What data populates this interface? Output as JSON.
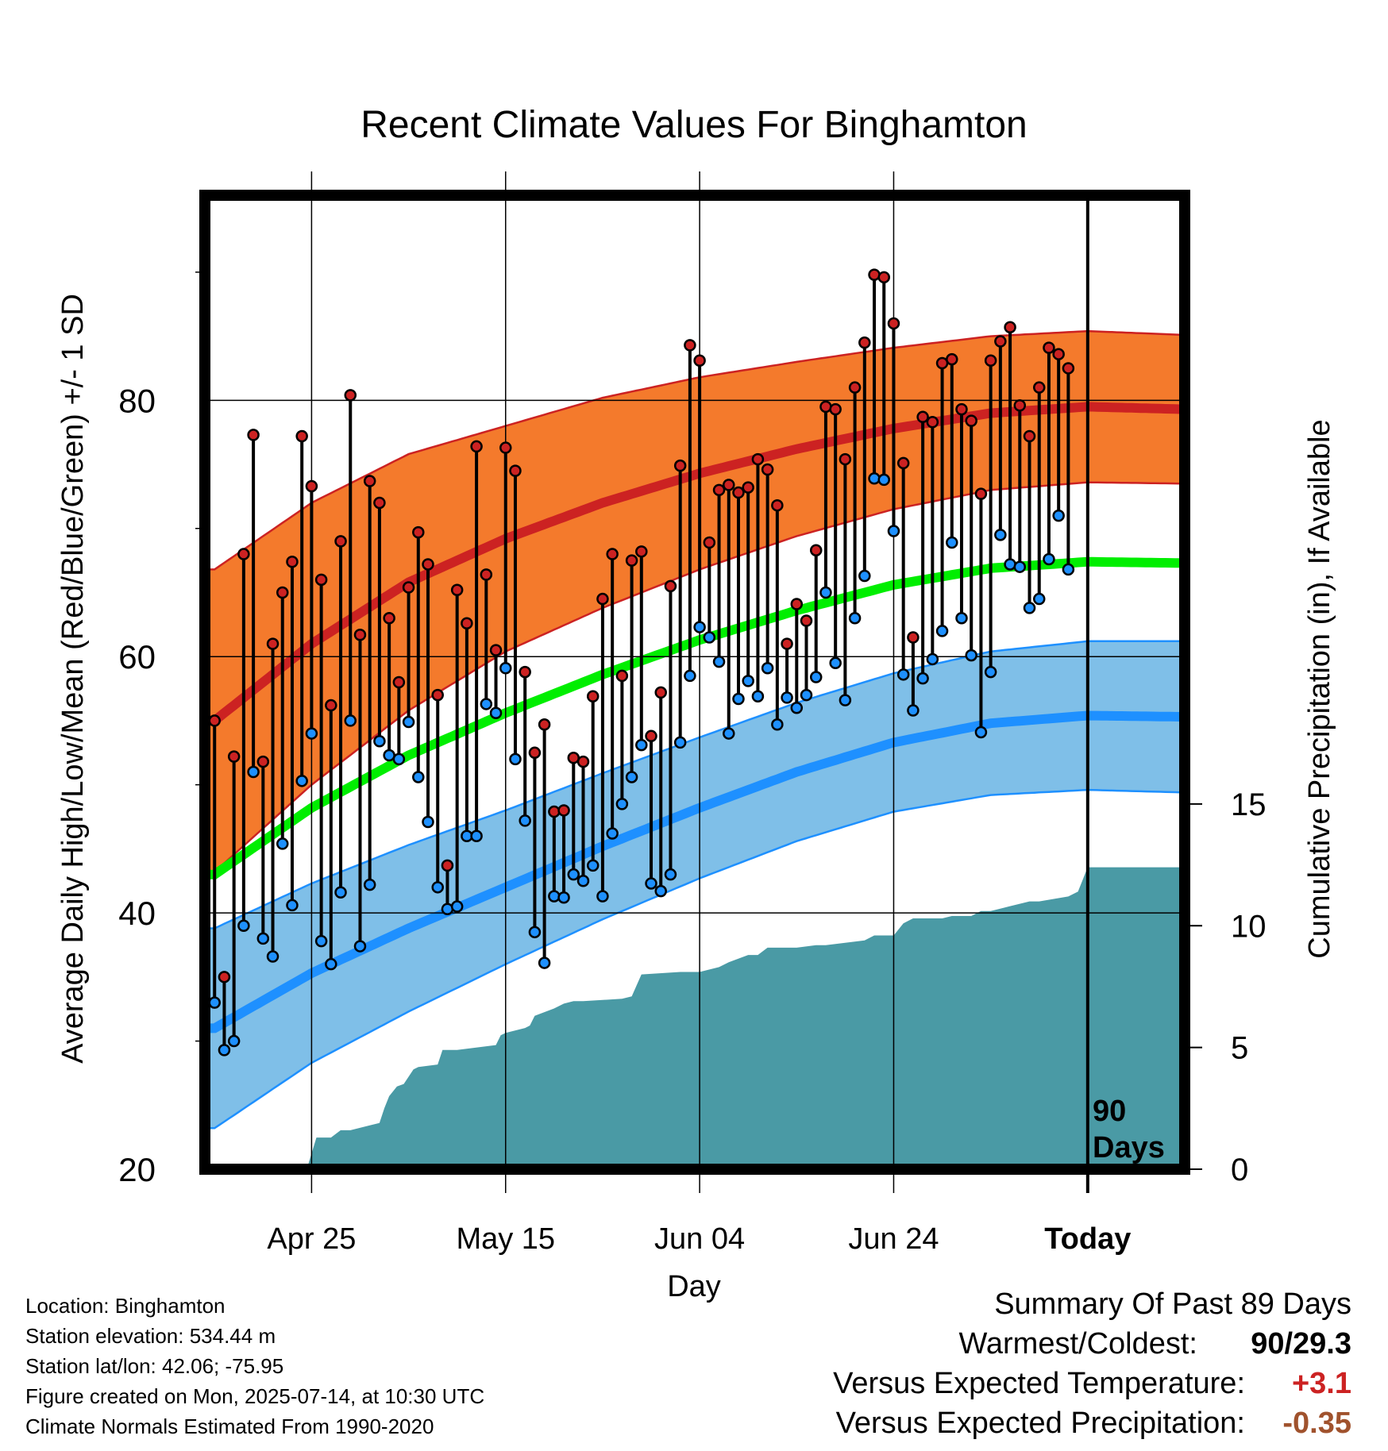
{
  "chart_data": {
    "type": "line",
    "title": "Recent Climate Values For Binghamton",
    "xlabel": "Day",
    "ylabel": "Average Daily High/Low/Mean (Red/Blue/Green) +/- 1 SD",
    "y2label": "Cumulative Precipitation (in), If Available",
    "ylim": [
      20,
      96
    ],
    "y2lim": [
      0,
      40
    ],
    "y_ticks": [
      20,
      40,
      60,
      80
    ],
    "y2_ticks": [
      0,
      5,
      10,
      15
    ],
    "x_tick_labels": [
      "Apr 25",
      "May 15",
      "Jun 04",
      "Jun 24",
      "Today"
    ],
    "x_tick_days": [
      10,
      30,
      50,
      70,
      90
    ],
    "xlim": [
      -1,
      100
    ],
    "today_marker": {
      "day": 90,
      "label_line1": "90",
      "label_line2": "Days"
    },
    "grid": true,
    "colors": {
      "high": "#cc2222",
      "high_band": "#f47a2c",
      "low": "#1e90ff",
      "low_band": "#7fbfe8",
      "mean": "#00ee00",
      "precip": "#4a9aa5"
    },
    "normals": {
      "day": [
        0,
        10,
        20,
        30,
        40,
        50,
        60,
        70,
        80,
        90,
        100
      ],
      "high": [
        55.0,
        61.0,
        65.8,
        69.2,
        72.0,
        74.3,
        76.2,
        77.8,
        79.0,
        79.5,
        79.3
      ],
      "high_sd": [
        11.8,
        11.0,
        10.0,
        8.8,
        8.2,
        7.5,
        6.8,
        6.3,
        6.0,
        5.9,
        5.8
      ],
      "low": [
        31.0,
        35.3,
        38.8,
        42.0,
        45.2,
        48.2,
        51.0,
        53.3,
        54.8,
        55.4,
        55.3
      ],
      "low_sd": [
        7.8,
        7.0,
        6.5,
        6.0,
        5.7,
        5.5,
        5.4,
        5.4,
        5.6,
        5.8,
        5.9
      ],
      "mean": [
        43.0,
        48.2,
        52.3,
        55.6,
        58.6,
        61.3,
        63.6,
        65.6,
        66.9,
        67.4,
        67.3
      ]
    },
    "daily": {
      "high": [
        55.0,
        35.0,
        52.2,
        68.0,
        77.3,
        51.8,
        61.0,
        65.0,
        67.4,
        77.2,
        73.3,
        66.0,
        56.2,
        69.0,
        80.4,
        61.7,
        73.7,
        72.0,
        63.0,
        58.0,
        65.4,
        69.7,
        67.2,
        57.0,
        43.7,
        65.2,
        62.6,
        76.4,
        66.4,
        60.5,
        76.3,
        74.5,
        58.8,
        52.5,
        54.7,
        47.9,
        48.0,
        52.1,
        51.8,
        56.9,
        64.5,
        68.0,
        58.5,
        67.5,
        68.2,
        53.8,
        57.2,
        65.5,
        74.9,
        84.3,
        83.1,
        68.9,
        73.0,
        73.4,
        72.8,
        73.2,
        75.4,
        74.6,
        71.8,
        61.0,
        64.1,
        62.8,
        68.3,
        79.5,
        79.3,
        75.4,
        81.0,
        84.5,
        89.8,
        89.6,
        86.0,
        75.1,
        61.5,
        78.7,
        78.3,
        82.9,
        83.2,
        79.3,
        78.4,
        72.7,
        83.1,
        84.6,
        85.7,
        79.6,
        77.2,
        81.0,
        84.1,
        83.6,
        82.5
      ],
      "low": [
        33.0,
        29.3,
        30.0,
        39.0,
        51.0,
        38.0,
        36.6,
        45.4,
        40.6,
        50.3,
        54.0,
        37.8,
        36.0,
        41.6,
        55.0,
        37.4,
        42.2,
        53.4,
        52.3,
        52.0,
        54.9,
        50.6,
        47.1,
        42.0,
        40.3,
        40.5,
        46.0,
        46.0,
        56.3,
        55.6,
        59.1,
        52.0,
        47.2,
        38.5,
        36.1,
        41.3,
        41.2,
        43.0,
        42.5,
        43.7,
        41.3,
        46.2,
        48.5,
        50.6,
        53.1,
        42.3,
        41.7,
        43.0,
        53.3,
        58.5,
        62.3,
        61.5,
        59.6,
        54.0,
        56.7,
        58.1,
        56.9,
        59.1,
        54.7,
        56.8,
        56.0,
        57.0,
        58.4,
        65.0,
        59.5,
        56.6,
        63.0,
        66.3,
        73.9,
        73.8,
        69.8,
        58.6,
        55.8,
        58.3,
        59.8,
        62.0,
        68.9,
        63.0,
        60.1,
        54.1,
        58.8,
        69.5,
        67.2,
        67.0,
        63.8,
        64.5,
        67.6,
        71.0,
        66.8
      ]
    },
    "precip_cumulative": {
      "day": [
        -1,
        9.5,
        10.5,
        12,
        13,
        14,
        16,
        17,
        17.5,
        18,
        18.8,
        19.5,
        20.5,
        21,
        23,
        23.5,
        25,
        29,
        29.5,
        30,
        32,
        32.5,
        33,
        35,
        36,
        37,
        38,
        42,
        43,
        44,
        48,
        49,
        50,
        52,
        53,
        55,
        56,
        57,
        60,
        62,
        63,
        67,
        68,
        70,
        71,
        72,
        75,
        76,
        78,
        79,
        80,
        83,
        84,
        85,
        88,
        89,
        90,
        100
      ],
      "value": [
        0,
        0,
        1.3,
        1.3,
        1.6,
        1.6,
        1.8,
        1.9,
        2.5,
        3.0,
        3.4,
        3.5,
        4.1,
        4.2,
        4.3,
        4.9,
        4.9,
        5.1,
        5.5,
        5.6,
        5.8,
        5.9,
        6.3,
        6.6,
        6.8,
        6.9,
        6.9,
        7.0,
        7.1,
        8.0,
        8.1,
        8.1,
        8.1,
        8.3,
        8.5,
        8.8,
        8.8,
        9.1,
        9.1,
        9.2,
        9.2,
        9.4,
        9.6,
        9.6,
        10.1,
        10.3,
        10.3,
        10.4,
        10.4,
        10.6,
        10.6,
        10.9,
        11.0,
        11.0,
        11.2,
        11.4,
        12.4,
        12.4
      ]
    }
  },
  "info": {
    "location": "Location: Binghamton",
    "elevation": "Station elevation: 534.44 m",
    "latlon": "Station lat/lon: 42.06; -75.95",
    "created": "Figure created on Mon, 2025-07-14, at 10:30 UTC",
    "normals": "Climate Normals Estimated From 1990-2020"
  },
  "summary": {
    "title": "Summary Of Past 89 Days",
    "warmest_coldest_label": "Warmest/Coldest:",
    "warmest_coldest_value": "90/29.3",
    "temp_label": "Versus Expected Temperature:",
    "temp_value": "+3.1",
    "temp_color": "#cc2222",
    "precip_label": "Versus Expected Precipitation:",
    "precip_value": "-0.35",
    "precip_color": "#a0522d"
  }
}
